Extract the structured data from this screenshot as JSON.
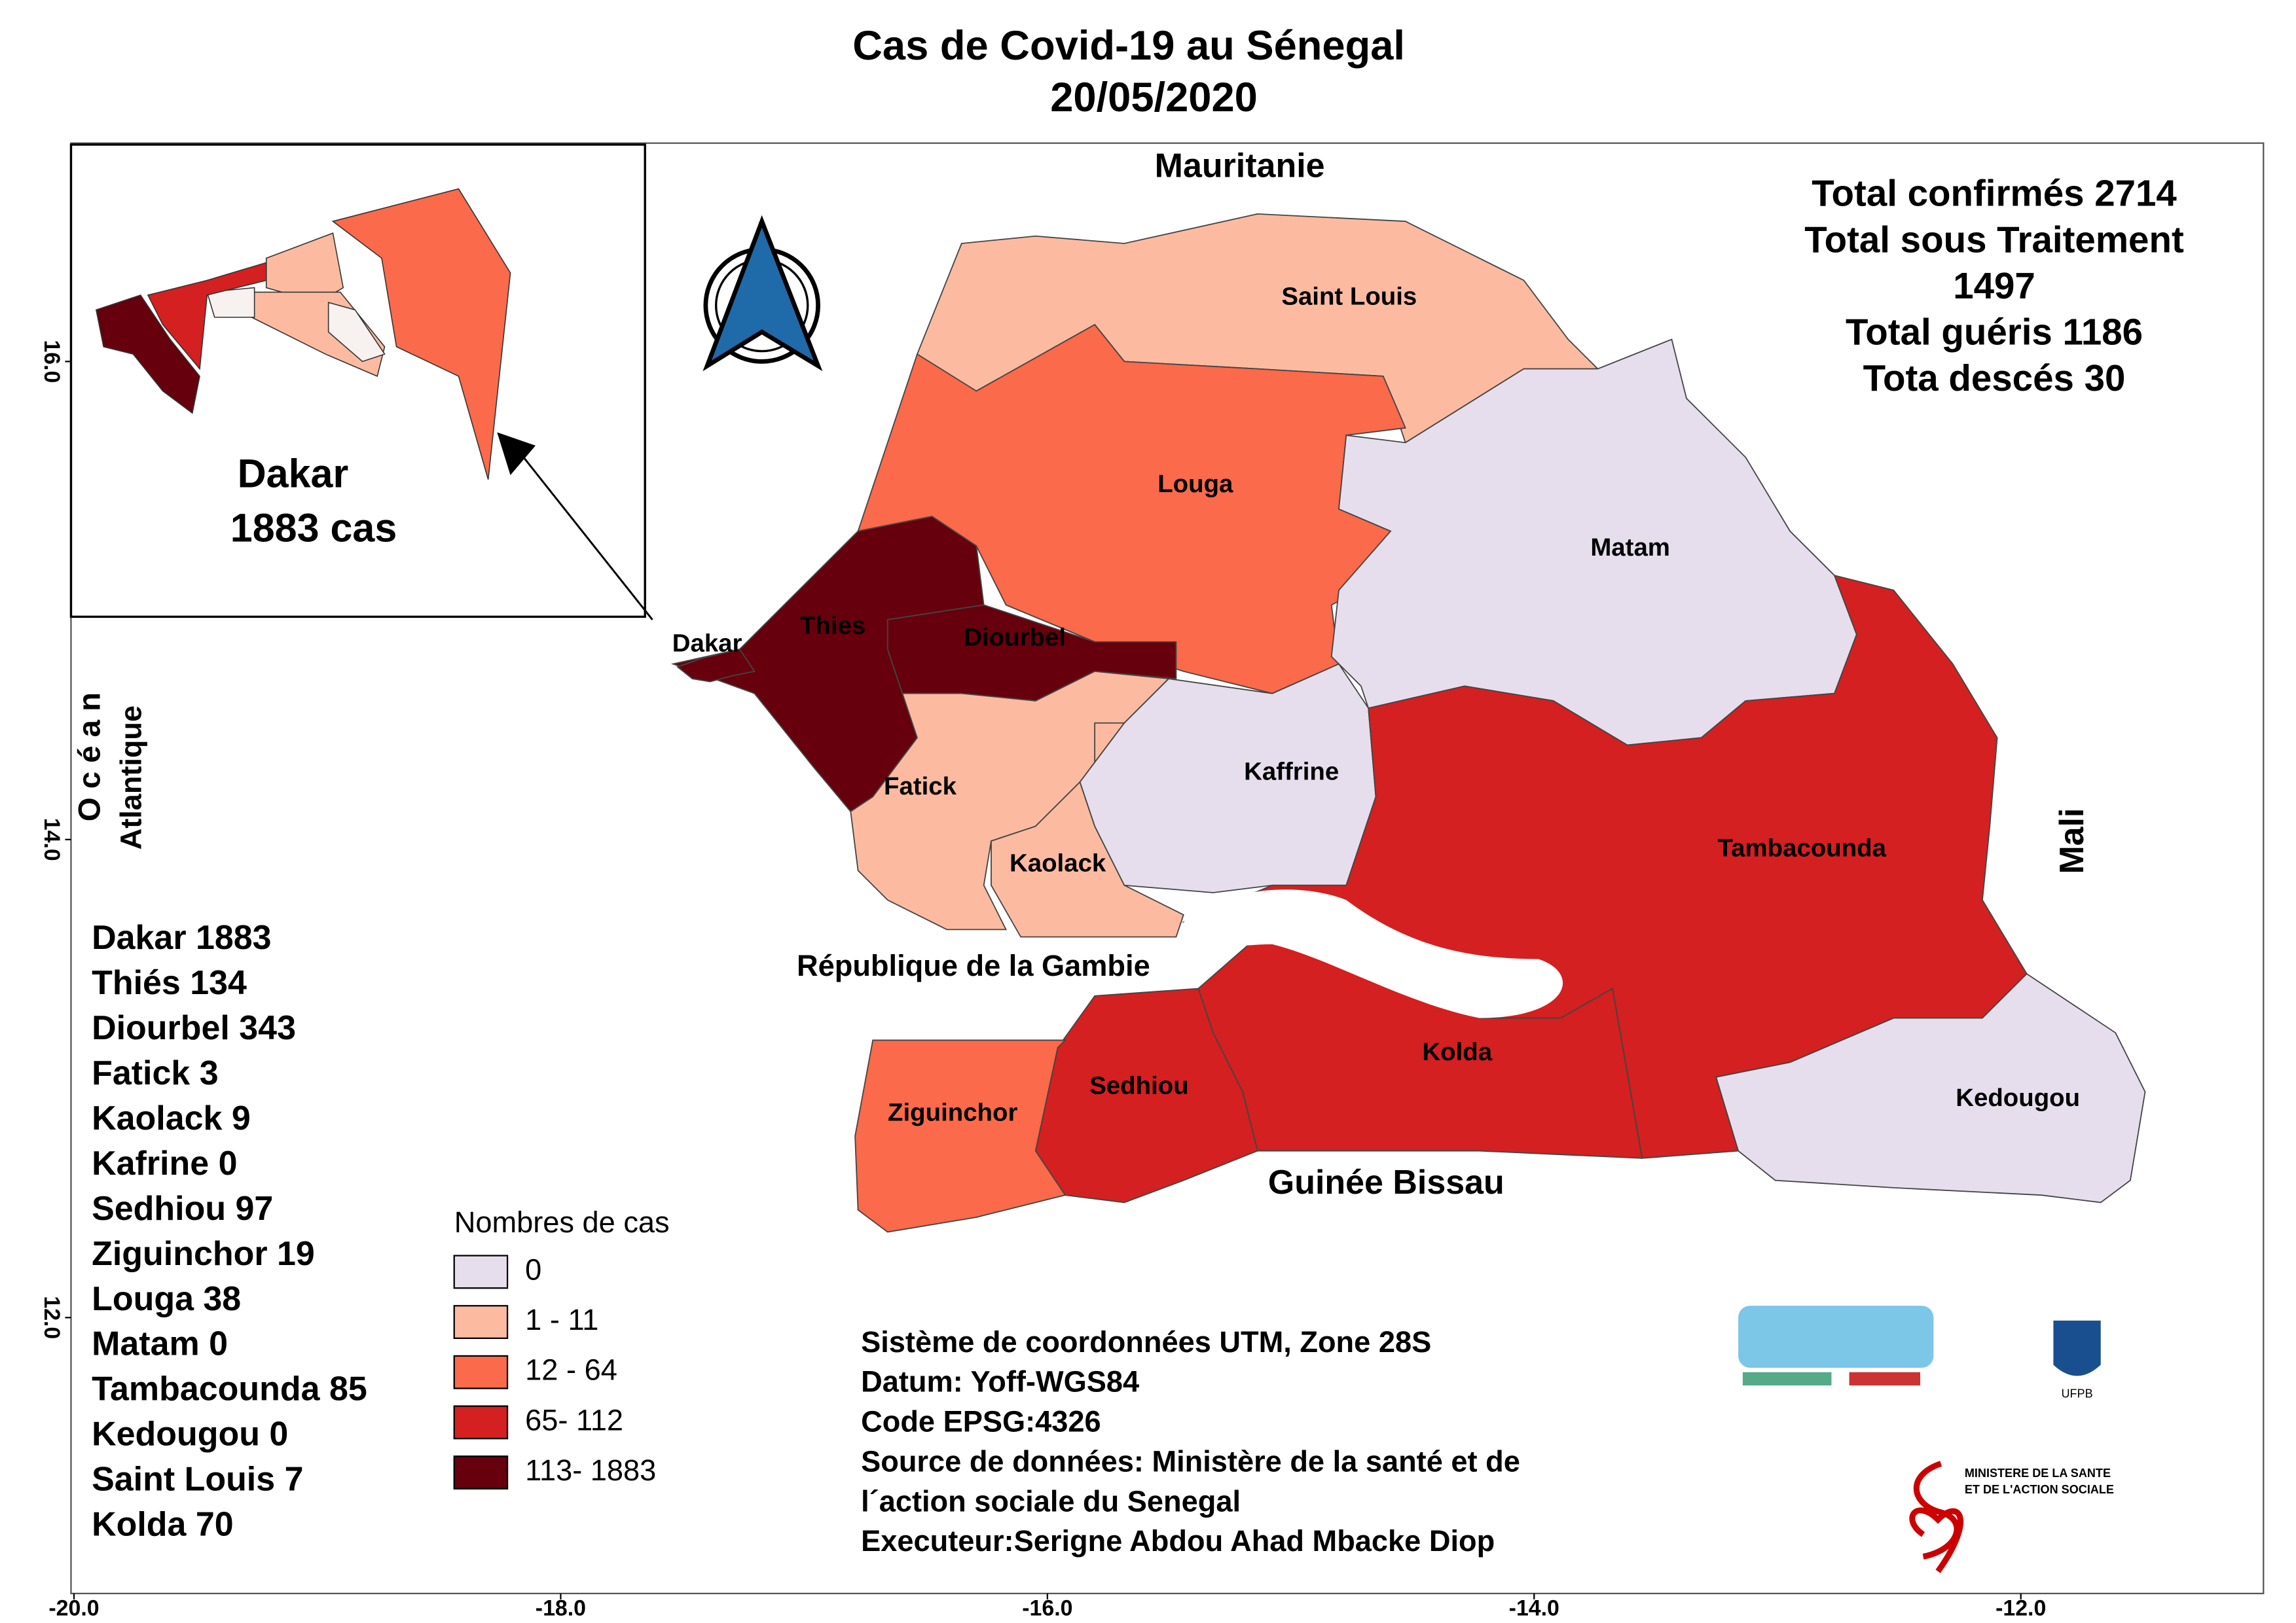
{
  "title": "Cas de Covid-19 au Sénegal",
  "date": "20/05/2020",
  "neighbors": {
    "north": "Mauritanie",
    "east": "Mali",
    "south": "Guinée Bissau",
    "gambia": "République  de la Gambie",
    "ocean": "O c é a n",
    "ocean2": "Atlantique"
  },
  "totals": [
    "Total confirmés 2714",
    "Total sous Traitement",
    "1497",
    "Total guéris 1186",
    "Tota descés 30"
  ],
  "inset": {
    "name": "Dakar",
    "cases": "1883 cas"
  },
  "regions": [
    {
      "name": "Saint Louis",
      "color": "#fcbba1"
    },
    {
      "name": "Louga",
      "color": "#fb6a4a"
    },
    {
      "name": "Matam",
      "color": "#e7deed"
    },
    {
      "name": "Thies",
      "color": "#67000d"
    },
    {
      "name": "Diourbel",
      "color": "#67000d"
    },
    {
      "name": "Fatick",
      "color": "#fcbba1"
    },
    {
      "name": "Kaolack",
      "color": "#fcbba1"
    },
    {
      "name": "Kaffrine",
      "color": "#e7deed"
    },
    {
      "name": "Tambacounda",
      "color": "#d42020"
    },
    {
      "name": "Kolda",
      "color": "#d42020"
    },
    {
      "name": "Sedhiou",
      "color": "#d42020"
    },
    {
      "name": "Ziguinchor",
      "color": "#fb6a4a"
    },
    {
      "name": "Kedougou",
      "color": "#e7deed"
    },
    {
      "name": "Dakar",
      "color": "#67000d"
    }
  ],
  "case_list": [
    "Dakar 1883",
    "Thiés  134",
    "Diourbel 343",
    "Fatick 3",
    "Kaolack 9",
    "Kafrine  0",
    "Sedhiou  97",
    "Ziguinchor 19",
    "Louga 38",
    "Matam 0",
    "Tambacounda 85",
    "Kedougou 0",
    "Saint Louis  7",
    "Kolda  70"
  ],
  "legend": {
    "title": "Nombres de cas",
    "entries": [
      {
        "label": "0",
        "color": "#e7deed"
      },
      {
        "label": "1 - 11",
        "color": "#fcbba1"
      },
      {
        "label": "12 - 64",
        "color": "#fb6a4a"
      },
      {
        "label": "65- 112",
        "color": "#d42020"
      },
      {
        "label": "113- 1883",
        "color": "#67000d"
      }
    ]
  },
  "metadata": [
    "Sistème de coordonnées UTM, Zone 28S",
    "Datum: Yoff-WGS84",
    "Code EPSG:4326",
    "Source de données: Ministère de la santé et de",
    " l´action sociale du Senegal",
    "Executeur:Serigne Abdou Ahad Mbacke Diop"
  ],
  "logos": {
    "ufpb": "UFPB",
    "ministry1": "MINISTERE DE LA SANTE",
    "ministry2": "ET DE L'ACTION SOCIALE"
  },
  "xticks": [
    {
      "value": -20,
      "label": "-20.0"
    },
    {
      "value": -18,
      "label": "-18.0"
    },
    {
      "value": -16,
      "label": "-16.0"
    },
    {
      "value": -14,
      "label": "-14.0"
    },
    {
      "value": -12,
      "label": "-12.0"
    }
  ],
  "yticks": [
    {
      "value": 16,
      "label": "16.0"
    },
    {
      "value": 14,
      "label": "14.0"
    },
    {
      "value": 12,
      "label": "12.0"
    }
  ]
}
